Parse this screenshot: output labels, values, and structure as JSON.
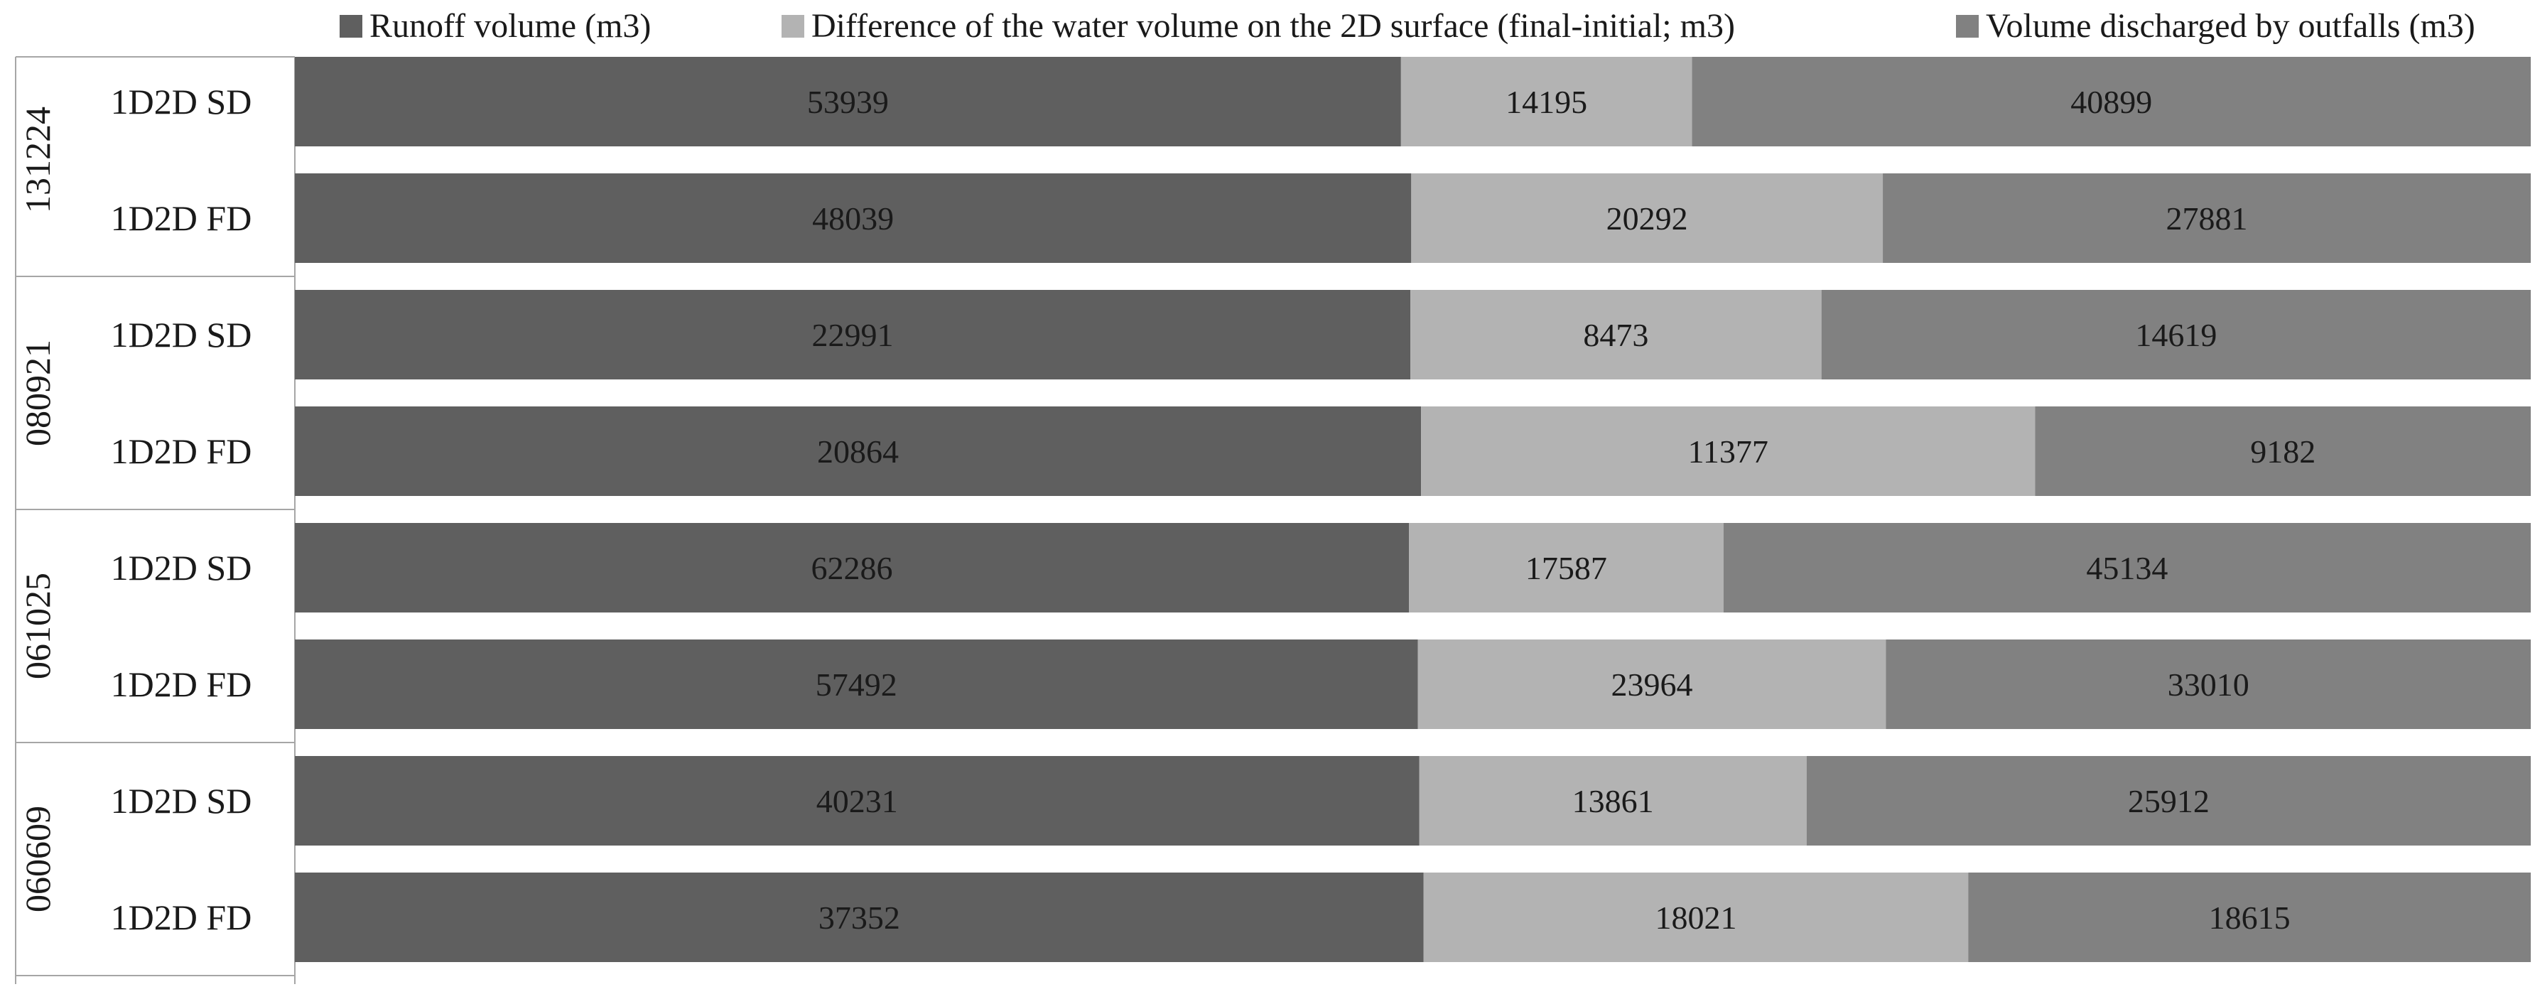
{
  "chart_data": {
    "type": "bar",
    "orientation": "horizontal",
    "stacking": "percent",
    "legend": "top",
    "grid": false,
    "series": [
      {
        "name": "Runoff volume (m3)",
        "color": "#5f5f5f",
        "values": [
          53939,
          48039,
          22991,
          20864,
          62286,
          57492,
          40231,
          37352
        ]
      },
      {
        "name": "Difference of the water volume on the 2D surface (final-initial; m3)",
        "color": "#b3b3b3",
        "values": [
          14195,
          20292,
          8473,
          11377,
          17587,
          23964,
          13861,
          18021
        ]
      },
      {
        "name": "Volume discharged by outfalls (m3)",
        "color": "#818181",
        "values": [
          40899,
          27881,
          14619,
          9182,
          45134,
          33010,
          25912,
          18615
        ]
      }
    ],
    "categories": [
      "1D2D SD",
      "1D2D FD",
      "1D2D SD",
      "1D2D FD",
      "1D2D SD",
      "1D2D FD",
      "1D2D SD",
      "1D2D FD"
    ],
    "groups": [
      {
        "label": "131224",
        "categories": [
          0,
          1
        ]
      },
      {
        "label": "080921",
        "categories": [
          2,
          3
        ]
      },
      {
        "label": "061025",
        "categories": [
          4,
          5
        ]
      },
      {
        "label": "060609",
        "categories": [
          6,
          7
        ]
      }
    ]
  }
}
